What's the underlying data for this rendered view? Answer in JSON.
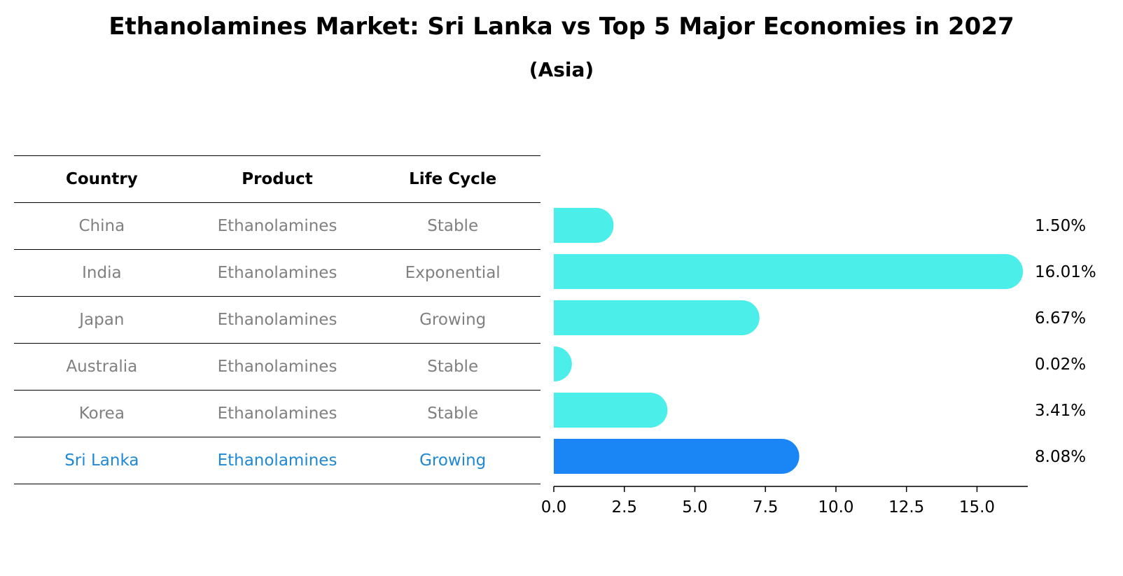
{
  "title": "Ethanolamines Market: Sri Lanka vs Top 5 Major Economies in 2027",
  "subtitle": "(Asia)",
  "table": {
    "headers": [
      "Country",
      "Product",
      "Life Cycle"
    ],
    "rows": [
      [
        "China",
        "Ethanolamines",
        "Stable"
      ],
      [
        "India",
        "Ethanolamines",
        "Exponential"
      ],
      [
        "Japan",
        "Ethanolamines",
        "Growing"
      ],
      [
        "Australia",
        "Ethanolamines",
        "Stable"
      ],
      [
        "Korea",
        "Ethanolamines",
        "Stable"
      ],
      [
        "Sri Lanka",
        "Ethanolamines",
        "Growing"
      ]
    ],
    "highlight_row": 5
  },
  "chart_data": {
    "type": "bar",
    "orientation": "horizontal",
    "categories": [
      "China",
      "India",
      "Japan",
      "Australia",
      "Korea",
      "Sri Lanka"
    ],
    "values": [
      1.5,
      16.01,
      6.67,
      0.02,
      3.41,
      8.08
    ],
    "value_labels": [
      "1.50%",
      "16.01%",
      "6.67%",
      "0.02%",
      "3.41%",
      "8.08%"
    ],
    "xticks": [
      "0.0",
      "2.5",
      "5.0",
      "7.5",
      "10.0",
      "12.5",
      "15.0"
    ],
    "xlim": [
      0,
      16.8
    ],
    "grid": false,
    "colors": {
      "default": "#4ceee9",
      "highlight": "#1a86f5"
    },
    "highlight_index": 5
  }
}
